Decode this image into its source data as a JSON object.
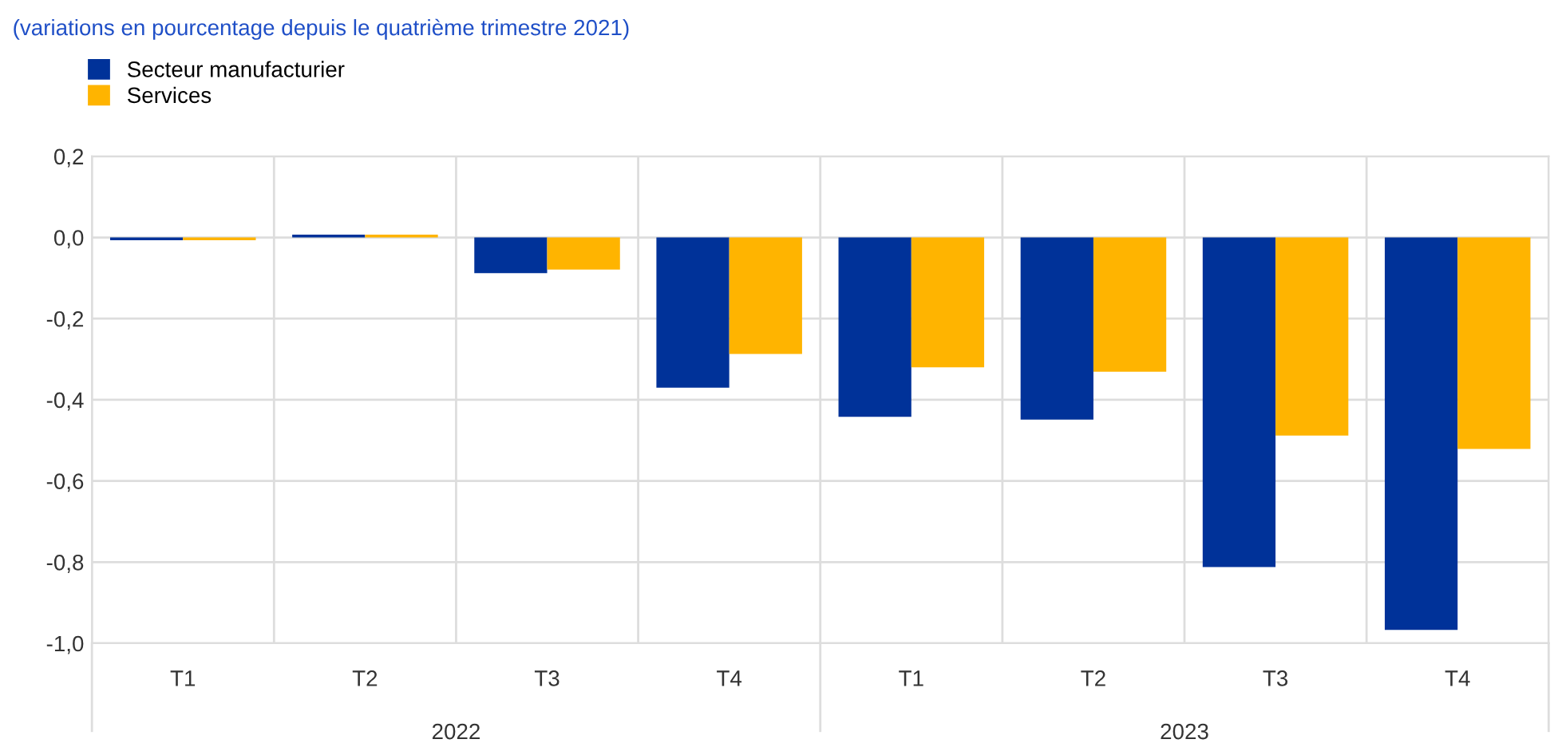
{
  "chart_data": {
    "type": "bar",
    "subtitle": "(variations en pourcentage depuis le quatrième trimestre 2021)",
    "categories": [
      "T1",
      "T2",
      "T3",
      "T4",
      "T1",
      "T2",
      "T3",
      "T4"
    ],
    "series": [
      {
        "name": "Secteur manufacturier",
        "color": "#003299",
        "values": [
          -0.007,
          0.007,
          -0.088,
          -0.37,
          -0.442,
          -0.449,
          -0.812,
          -0.967
        ]
      },
      {
        "name": "Services",
        "color": "#ffb400",
        "values": [
          -0.007,
          0.007,
          -0.079,
          -0.287,
          -0.32,
          -0.331,
          -0.488,
          -0.521
        ]
      }
    ],
    "annotations": [
      "2022",
      "2023"
    ],
    "ylim": [
      -1.0,
      0.2
    ],
    "yticks": [
      {
        "value": 0.2,
        "label": "0,2"
      },
      {
        "value": 0.0,
        "label": "0,0"
      },
      {
        "value": -0.2,
        "label": "-0,2"
      },
      {
        "value": -0.4,
        "label": "-0,4"
      },
      {
        "value": -0.6,
        "label": "-0,6"
      },
      {
        "value": -0.8,
        "label": "-0,8"
      },
      {
        "value": -1.0,
        "label": "-1,0"
      }
    ],
    "grid": true,
    "legend": "top left"
  }
}
